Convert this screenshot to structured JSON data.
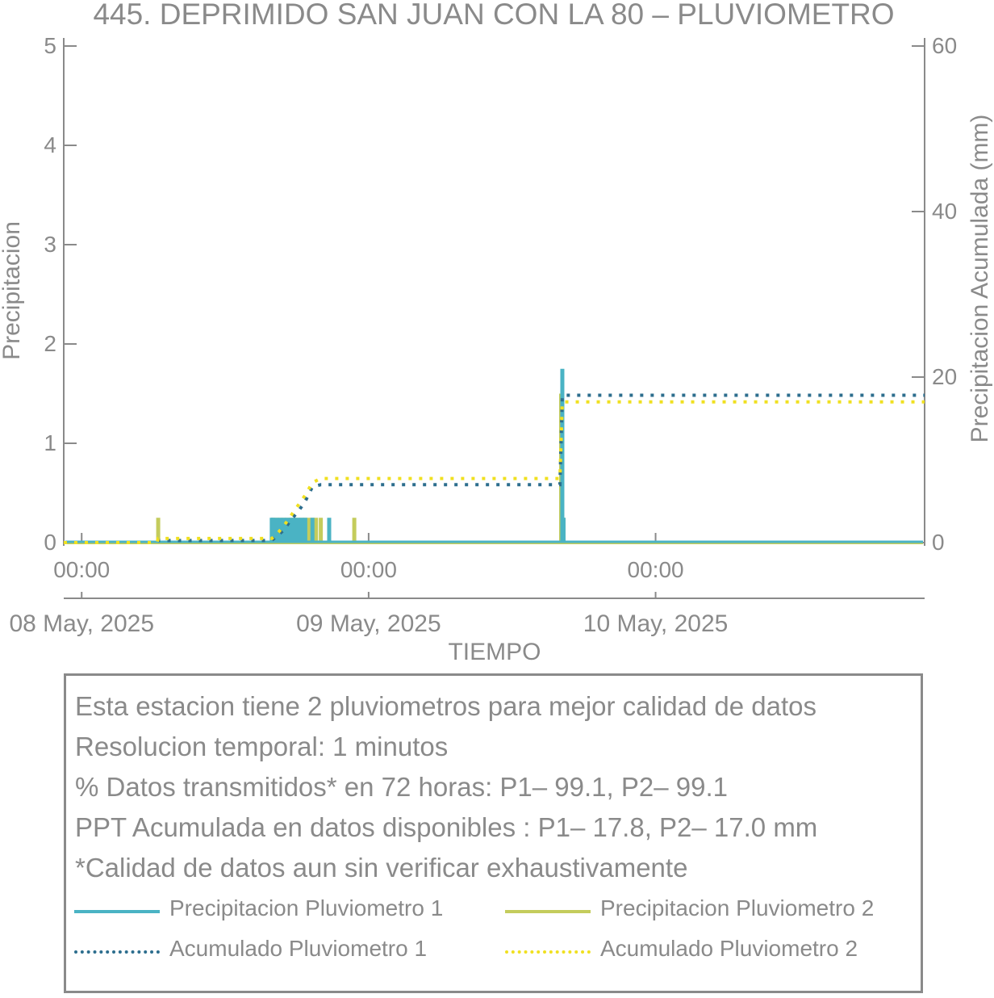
{
  "chart_data": {
    "type": "bar+line",
    "title": "445. DEPRIMIDO SAN JUAN CON LA 80 – PLUVIOMETRO",
    "xlabel": "TIEMPO",
    "ylabel_left": "Precipitacion",
    "ylabel_right": "Precipitacion Acumulada (mm)",
    "ylim_left": [
      0,
      5
    ],
    "ylim_right": [
      0,
      60
    ],
    "yticks_left": [
      "0",
      "1",
      "2",
      "3",
      "4",
      "5"
    ],
    "yticks_right": [
      "0",
      "20",
      "40",
      "60"
    ],
    "xlim_hours": [
      -1.5,
      70.5
    ],
    "x_ticks": [
      {
        "time": "00:00",
        "date": "08 May, 2025",
        "hours": 0
      },
      {
        "time": "00:00",
        "date": "09 May, 2025",
        "hours": 24
      },
      {
        "time": "00:00",
        "date": "10 May, 2025",
        "hours": 48
      }
    ],
    "series": [
      {
        "name": "Precipitacion Pluviometro 1",
        "kind": "bar",
        "axis": "left",
        "color": "#4ab3c4",
        "points": [
          [
            15.9,
            0.25
          ],
          [
            16.0,
            0.25
          ],
          [
            16.3,
            0.25
          ],
          [
            16.6,
            0.25
          ],
          [
            16.9,
            0.25
          ],
          [
            17.2,
            0.25
          ],
          [
            17.5,
            0.25
          ],
          [
            17.8,
            0.25
          ],
          [
            18.1,
            0.25
          ],
          [
            18.4,
            0.25
          ],
          [
            18.7,
            0.25
          ],
          [
            19.3,
            0.25
          ],
          [
            20.7,
            0.25
          ],
          [
            40.2,
            1.75
          ],
          [
            40.3,
            0.25
          ]
        ]
      },
      {
        "name": "Precipitacion Pluviometro 2",
        "kind": "bar",
        "axis": "left",
        "color": "#c4cc5c",
        "points": [
          [
            6.4,
            0.25
          ],
          [
            16.0,
            0.25
          ],
          [
            16.3,
            0.25
          ],
          [
            16.6,
            0.25
          ],
          [
            16.9,
            0.25
          ],
          [
            17.2,
            0.25
          ],
          [
            17.5,
            0.25
          ],
          [
            17.8,
            0.25
          ],
          [
            18.1,
            0.25
          ],
          [
            18.4,
            0.25
          ],
          [
            18.7,
            0.25
          ],
          [
            19.0,
            0.25
          ],
          [
            19.3,
            0.25
          ],
          [
            19.6,
            0.25
          ],
          [
            20.0,
            0.25
          ],
          [
            22.8,
            0.25
          ],
          [
            40.1,
            1.5
          ],
          [
            40.3,
            0.25
          ]
        ]
      },
      {
        "name": "Acumulado Pluviometro 1",
        "kind": "line",
        "axis": "right",
        "color": "#2d6e8e",
        "points": [
          [
            -1.5,
            0
          ],
          [
            6.3,
            0
          ],
          [
            6.4,
            0.25
          ],
          [
            15.9,
            0.25
          ],
          [
            16.3,
            0.75
          ],
          [
            16.9,
            1.5
          ],
          [
            17.5,
            2.75
          ],
          [
            18.1,
            3.75
          ],
          [
            18.7,
            5.0
          ],
          [
            19.3,
            6.75
          ],
          [
            20.0,
            7.0
          ],
          [
            22.8,
            7.0
          ],
          [
            40.0,
            7.0
          ],
          [
            40.2,
            17.8
          ],
          [
            70.5,
            17.8
          ]
        ]
      },
      {
        "name": "Acumulado Pluviometro 2",
        "kind": "line",
        "axis": "right",
        "color": "#f0e020",
        "points": [
          [
            -1.5,
            0
          ],
          [
            6.3,
            0
          ],
          [
            6.4,
            0.5
          ],
          [
            15.9,
            0.5
          ],
          [
            16.3,
            1.0
          ],
          [
            16.9,
            2.0
          ],
          [
            17.5,
            3.25
          ],
          [
            18.1,
            4.5
          ],
          [
            18.7,
            5.75
          ],
          [
            19.3,
            7.25
          ],
          [
            20.0,
            7.75
          ],
          [
            22.8,
            7.75
          ],
          [
            40.0,
            7.75
          ],
          [
            40.2,
            17.0
          ],
          [
            70.5,
            17.0
          ]
        ]
      }
    ]
  },
  "info": {
    "lines": [
      "Esta estacion tiene 2 pluviometros para mejor calidad de datos",
      "Resolucion temporal: 1 minutos",
      "% Datos transmitidos* en 72 horas: P1– 99.1, P2– 99.1",
      "PPT Acumulada en datos disponibles : P1– 17.8, P2– 17.0 mm",
      "*Calidad de datos aun sin verificar exhaustivamente"
    ]
  },
  "legend": {
    "items": [
      {
        "label": "Precipitacion Pluviometro 1",
        "color": "#4ab3c4",
        "style": "solid"
      },
      {
        "label": "Precipitacion Pluviometro 2",
        "color": "#c4cc5c",
        "style": "solid"
      },
      {
        "label": "Acumulado Pluviometro 1",
        "color": "#2d6e8e",
        "style": "dotted"
      },
      {
        "label": "Acumulado Pluviometro 2",
        "color": "#f0e020",
        "style": "dotted"
      }
    ]
  }
}
